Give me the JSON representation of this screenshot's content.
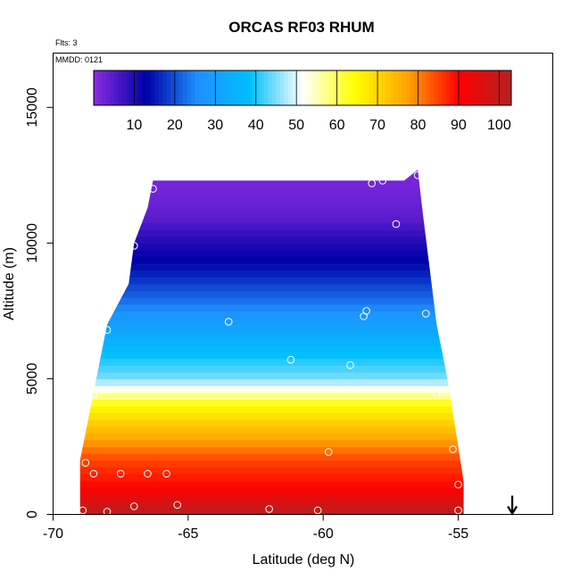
{
  "chart_data": {
    "type": "heatmap",
    "title": "ORCAS RF03 RHUM",
    "subtitle": "Flts: 3",
    "annotation": "MMDD: 0121",
    "xlabel": "Latitude (deg N)",
    "ylabel": "Altitude (m)",
    "xlim": [
      -70,
      -51.5
    ],
    "ylim": [
      0,
      17000
    ],
    "x_ticks": [
      -70,
      -65,
      -60,
      -55
    ],
    "x_tick_labels": [
      "-70",
      "-65",
      "-60",
      "-55"
    ],
    "y_ticks": [
      0,
      5000,
      10000,
      15000
    ],
    "y_tick_labels": [
      "0",
      "5000",
      "10000",
      "15000"
    ],
    "colorbar": {
      "range": [
        0,
        103
      ],
      "ticks": [
        10,
        20,
        30,
        40,
        50,
        60,
        70,
        80,
        90,
        100
      ],
      "tick_labels": [
        "10",
        "20",
        "30",
        "40",
        "50",
        "60",
        "70",
        "80",
        "90",
        "100"
      ],
      "colors": [
        "#8a2be2",
        "#0000a8",
        "#1e90ff",
        "#00bfff",
        "#ffffff",
        "#ffff00",
        "#ffa500",
        "#ff0000",
        "#b22222"
      ]
    },
    "field": {
      "description_units": "RHUM (%)",
      "profiles": [
        {
          "altitude": 200,
          "value": 100
        },
        {
          "altitude": 1000,
          "value": 90
        },
        {
          "altitude": 2000,
          "value": 85
        },
        {
          "altitude": 3000,
          "value": 75
        },
        {
          "altitude": 4000,
          "value": 65
        },
        {
          "altitude": 4500,
          "value": 55
        },
        {
          "altitude": 5000,
          "value": 45
        },
        {
          "altitude": 6000,
          "value": 38
        },
        {
          "altitude": 7000,
          "value": 30
        },
        {
          "altitude": 8000,
          "value": 22
        },
        {
          "altitude": 9000,
          "value": 15
        },
        {
          "altitude": 10000,
          "value": 10
        },
        {
          "altitude": 11000,
          "value": 4
        },
        {
          "altitude": 12000,
          "value": 2
        }
      ],
      "top_boundary": [
        {
          "lat": -69,
          "altitude": 2000
        },
        {
          "lat": -68.5,
          "altitude": 4500
        },
        {
          "lat": -68,
          "altitude": 7000
        },
        {
          "lat": -67.2,
          "altitude": 8500
        },
        {
          "lat": -67,
          "altitude": 10000
        },
        {
          "lat": -66.5,
          "altitude": 11300
        },
        {
          "lat": -66.3,
          "altitude": 12300
        },
        {
          "lat": -57,
          "altitude": 12300
        },
        {
          "lat": -56.5,
          "altitude": 12700
        },
        {
          "lat": -56.3,
          "altitude": 11000
        },
        {
          "lat": -55.8,
          "altitude": 7000
        },
        {
          "lat": -55.4,
          "altitude": 5000
        },
        {
          "lat": -55,
          "altitude": 2500
        },
        {
          "lat": -54.8,
          "altitude": 1200
        }
      ]
    },
    "observations": [
      {
        "lat": -68.9,
        "altitude": 150
      },
      {
        "lat": -68.8,
        "altitude": 1900
      },
      {
        "lat": -68.5,
        "altitude": 1500
      },
      {
        "lat": -68.5,
        "altitude": 4400
      },
      {
        "lat": -68.0,
        "altitude": 100
      },
      {
        "lat": -68.0,
        "altitude": 6800
      },
      {
        "lat": -67.5,
        "altitude": 1500
      },
      {
        "lat": -67.0,
        "altitude": 300
      },
      {
        "lat": -67.0,
        "altitude": 9900
      },
      {
        "lat": -66.5,
        "altitude": 1500
      },
      {
        "lat": -66.3,
        "altitude": 12000
      },
      {
        "lat": -65.8,
        "altitude": 1500
      },
      {
        "lat": -65.4,
        "altitude": 350
      },
      {
        "lat": -63.5,
        "altitude": 7100
      },
      {
        "lat": -62.0,
        "altitude": 200
      },
      {
        "lat": -61.2,
        "altitude": 5700
      },
      {
        "lat": -60.2,
        "altitude": 150
      },
      {
        "lat": -59.8,
        "altitude": 2300
      },
      {
        "lat": -59.0,
        "altitude": 5500
      },
      {
        "lat": -58.5,
        "altitude": 7300
      },
      {
        "lat": -58.4,
        "altitude": 7500
      },
      {
        "lat": -58.2,
        "altitude": 12200
      },
      {
        "lat": -57.8,
        "altitude": 12300
      },
      {
        "lat": -57.3,
        "altitude": 10700
      },
      {
        "lat": -56.5,
        "altitude": 12500
      },
      {
        "lat": -56.2,
        "altitude": 7400
      },
      {
        "lat": -55.8,
        "altitude": 4500
      },
      {
        "lat": -55.6,
        "altitude": 4500
      },
      {
        "lat": -55.2,
        "altitude": 2400
      },
      {
        "lat": -55.0,
        "altitude": 1100
      },
      {
        "lat": -55.0,
        "altitude": 150
      }
    ],
    "marker": {
      "lat": -53,
      "altitude": 0,
      "symbol": "↓"
    }
  }
}
